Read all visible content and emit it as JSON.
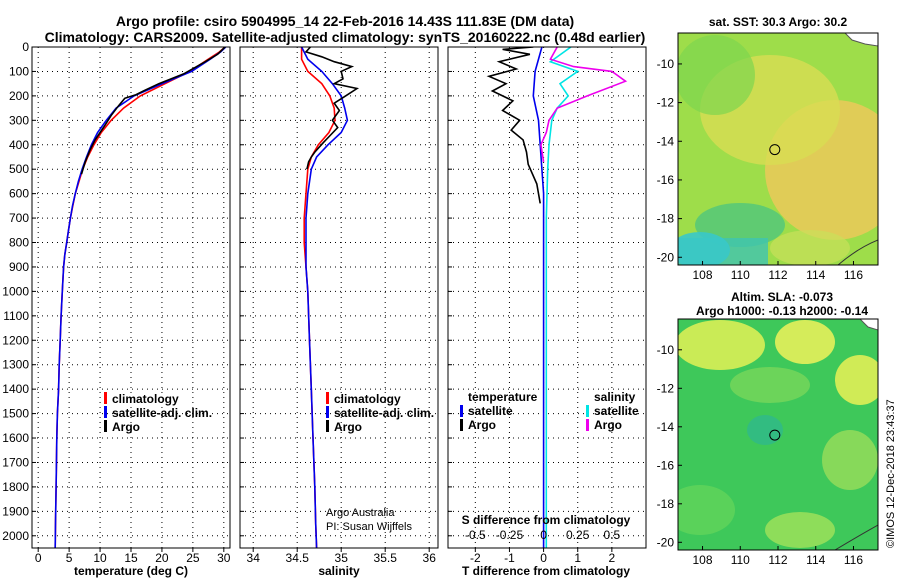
{
  "header": {
    "title_line1": "Argo profile: csiro 5904995_14 22-Feb-2016 14.43S 111.83E (DM data)",
    "title_line2": "Climatology: CARS2009. Satellite-adjusted climatology: synTS_20160222.nc (0.48d earlier)"
  },
  "colors": {
    "climatology": "#ff0000",
    "satellite": "#0000ee",
    "argo": "#000000",
    "salinity_satellite": "#00e5e5",
    "salinity_argo": "#ee00ee"
  },
  "chart_data": [
    {
      "type": "line",
      "xlabel": "temperature (deg C)",
      "xlim": [
        -1,
        31
      ],
      "xticks": [
        0,
        5,
        10,
        15,
        20,
        25,
        30
      ],
      "ylim": [
        0,
        2050
      ],
      "yticks": [
        0,
        100,
        200,
        300,
        400,
        500,
        600,
        700,
        800,
        900,
        1000,
        1100,
        1200,
        1300,
        1400,
        1500,
        1600,
        1700,
        1800,
        1900,
        2000
      ],
      "y_reversed": true,
      "grid": true,
      "legend": [
        "climatology",
        "satellite-adj. clim.",
        "Argo"
      ],
      "legend_position": "lower-right",
      "series": [
        {
          "name": "climatology",
          "color": "#ff0000",
          "x": [
            30.2,
            29.3,
            27.5,
            24.5,
            20.5,
            16.5,
            13.8,
            11.8,
            10.2,
            9.0,
            8.0,
            7.2,
            6.6,
            6.0,
            5.6,
            5.2,
            4.9,
            4.6,
            4.3,
            4.1,
            3.9,
            3.7,
            3.55,
            3.4,
            3.3,
            3.1,
            3.0,
            2.9,
            2.8,
            2.75
          ],
          "y": [
            0,
            20,
            50,
            100,
            150,
            200,
            250,
            300,
            350,
            400,
            450,
            500,
            550,
            600,
            650,
            700,
            750,
            800,
            850,
            900,
            1000,
            1100,
            1200,
            1300,
            1400,
            1500,
            1600,
            1800,
            1950,
            2050
          ]
        },
        {
          "name": "satellite-adj. clim.",
          "color": "#0000ee",
          "x": [
            30.3,
            29.5,
            27.8,
            24.8,
            20.0,
            15.5,
            12.6,
            11.0,
            9.6,
            8.6,
            7.8,
            7.1,
            6.5,
            6.0,
            5.55,
            5.2,
            4.9,
            4.6,
            4.3,
            4.1,
            3.9,
            3.7,
            3.55,
            3.4,
            3.3,
            3.1,
            3.0,
            2.9,
            2.8,
            2.75
          ],
          "y": [
            0,
            20,
            50,
            100,
            150,
            200,
            250,
            300,
            350,
            400,
            450,
            500,
            550,
            600,
            650,
            700,
            750,
            800,
            850,
            900,
            1000,
            1100,
            1200,
            1300,
            1400,
            1500,
            1600,
            1800,
            1950,
            2050
          ]
        },
        {
          "name": "Argo",
          "color": "#000000",
          "x": [
            30.2,
            29.0,
            27.0,
            23.5,
            19.5,
            17.0,
            15.8,
            14.0,
            13.0,
            11.8,
            10.8,
            10.0,
            9.2,
            8.4,
            7.6,
            7.0
          ],
          "y": [
            0,
            30,
            60,
            110,
            150,
            180,
            195,
            210,
            240,
            280,
            320,
            350,
            380,
            420,
            470,
            520
          ]
        }
      ]
    },
    {
      "type": "line",
      "xlabel": "salinity",
      "xlim": [
        33.85,
        36.1
      ],
      "xticks": [
        34,
        34.5,
        35,
        35.5,
        36
      ],
      "ylim": [
        0,
        2050
      ],
      "y_reversed": true,
      "grid": true,
      "legend": [
        "climatology",
        "satellite-adj. clim.",
        "Argo"
      ],
      "legend_position": "lower-right",
      "annotations": [
        "Argo Australia",
        "PI: Susan Wijffels"
      ],
      "series": [
        {
          "name": "climatology",
          "color": "#ff0000",
          "x": [
            34.55,
            34.55,
            34.62,
            34.78,
            34.87,
            34.92,
            34.93,
            34.86,
            34.74,
            34.66,
            34.62,
            34.6,
            34.58,
            34.58,
            34.6,
            34.62,
            34.64,
            34.66,
            34.68,
            34.7,
            34.71,
            34.72
          ],
          "y": [
            0,
            50,
            100,
            150,
            200,
            250,
            300,
            350,
            400,
            450,
            500,
            600,
            700,
            800,
            900,
            1000,
            1200,
            1400,
            1600,
            1800,
            1950,
            2050
          ]
        },
        {
          "name": "satellite-adj. clim.",
          "color": "#0000ee",
          "x": [
            34.55,
            34.62,
            34.78,
            34.9,
            35.0,
            35.04,
            35.07,
            35.0,
            34.85,
            34.72,
            34.66,
            34.62,
            34.6,
            34.6,
            34.6,
            34.62,
            34.64,
            34.66,
            34.68,
            34.7,
            34.71,
            34.72
          ],
          "y": [
            0,
            50,
            100,
            150,
            200,
            250,
            300,
            350,
            400,
            450,
            500,
            600,
            700,
            800,
            900,
            1000,
            1200,
            1400,
            1600,
            1800,
            1950,
            2050
          ]
        },
        {
          "name": "Argo",
          "color": "#000000",
          "x": [
            34.65,
            34.6,
            34.78,
            34.92,
            35.12,
            35.0,
            35.02,
            34.92,
            35.18,
            35.05,
            34.92,
            34.98,
            34.9,
            34.96,
            34.88,
            34.8,
            34.75,
            34.7,
            34.66,
            34.63,
            34.61
          ],
          "y": [
            0,
            20,
            40,
            60,
            80,
            100,
            130,
            150,
            170,
            200,
            230,
            260,
            300,
            330,
            360,
            390,
            410,
            430,
            450,
            470,
            500
          ]
        }
      ]
    },
    {
      "type": "line",
      "xlabel": "T difference from climatology",
      "xlim": [
        -2.8,
        3.0
      ],
      "xticks": [
        -2,
        -1,
        0,
        1,
        2
      ],
      "secondary_xlabel": "S difference from climatology",
      "secondary_xticks": [
        -0.5,
        -0.25,
        0,
        0.25,
        0.5
      ],
      "secondary_xlim": [
        -0.7,
        0.75
      ],
      "ylim": [
        0,
        2050
      ],
      "y_reversed": true,
      "grid": true,
      "legend_left": [
        "temperature",
        "satellite",
        "Argo"
      ],
      "legend_right": [
        "salinity",
        "satellite",
        "Argo"
      ],
      "legend_position": "lower",
      "series": [
        {
          "name": "temperature satellite",
          "color": "#0000ee",
          "x": [
            -0.05,
            -0.25,
            -0.3,
            -0.15,
            -0.1,
            -0.05,
            0.0,
            0.0,
            0.0,
            0.0,
            0.0,
            0.0,
            0.0,
            0.0
          ],
          "y": [
            0,
            100,
            200,
            300,
            400,
            500,
            600,
            700,
            800,
            1000,
            1200,
            1500,
            1800,
            2050
          ]
        },
        {
          "name": "temperature Argo",
          "color": "#000000",
          "x": [
            -0.3,
            -1.2,
            -0.4,
            -1.3,
            -0.8,
            -1.6,
            -1.1,
            -1.5,
            -0.9,
            -1.2,
            -0.7,
            -0.95,
            -0.6,
            -0.5,
            -0.45,
            -0.2,
            -0.1
          ],
          "y": [
            0,
            10,
            30,
            60,
            90,
            120,
            150,
            180,
            220,
            260,
            300,
            340,
            380,
            430,
            480,
            560,
            640
          ]
        },
        {
          "name": "salinity satellite",
          "color": "#00e5e5",
          "x": [
            0.2,
            0.05,
            0.25,
            0.12,
            0.18,
            0.1,
            0.06,
            0.04,
            0.03,
            0.02,
            0.02,
            0.02,
            0.02
          ],
          "y": [
            0,
            60,
            100,
            150,
            200,
            250,
            300,
            400,
            500,
            700,
            1000,
            1500,
            2050
          ]
        },
        {
          "name": "salinity Argo",
          "color": "#ee00ee",
          "x": [
            0.1,
            0.05,
            0.22,
            0.5,
            0.6,
            0.32,
            0.1,
            0.04,
            0.02,
            -0.02,
            0.0
          ],
          "y": [
            0,
            50,
            80,
            100,
            140,
            200,
            250,
            300,
            350,
            400,
            470
          ]
        }
      ]
    },
    {
      "type": "heatmap",
      "title": "sat. SST: 30.3 Argo: 30.2",
      "xticks": [
        108,
        110,
        112,
        114,
        116
      ],
      "yticks": [
        -10,
        -12,
        -14,
        -16,
        -18,
        -20
      ],
      "xlim": [
        106.7,
        117.3
      ],
      "ylim": [
        -20.4,
        -8.4
      ],
      "marker": {
        "lon": 111.83,
        "lat": -14.43
      }
    },
    {
      "type": "heatmap",
      "title": "Altim. SLA: -0.073",
      "subtitle": "Argo h1000: -0.13 h2000: -0.14",
      "xticks": [
        108,
        110,
        112,
        114,
        116
      ],
      "yticks": [
        -10,
        -12,
        -14,
        -16,
        -18,
        -20
      ],
      "xlim": [
        106.7,
        117.3
      ],
      "ylim": [
        -20.4,
        -8.4
      ],
      "marker": {
        "lon": 111.83,
        "lat": -14.43
      }
    }
  ],
  "footer": {
    "credit": "©IMOS 12-Dec-2018 23:43:37"
  }
}
